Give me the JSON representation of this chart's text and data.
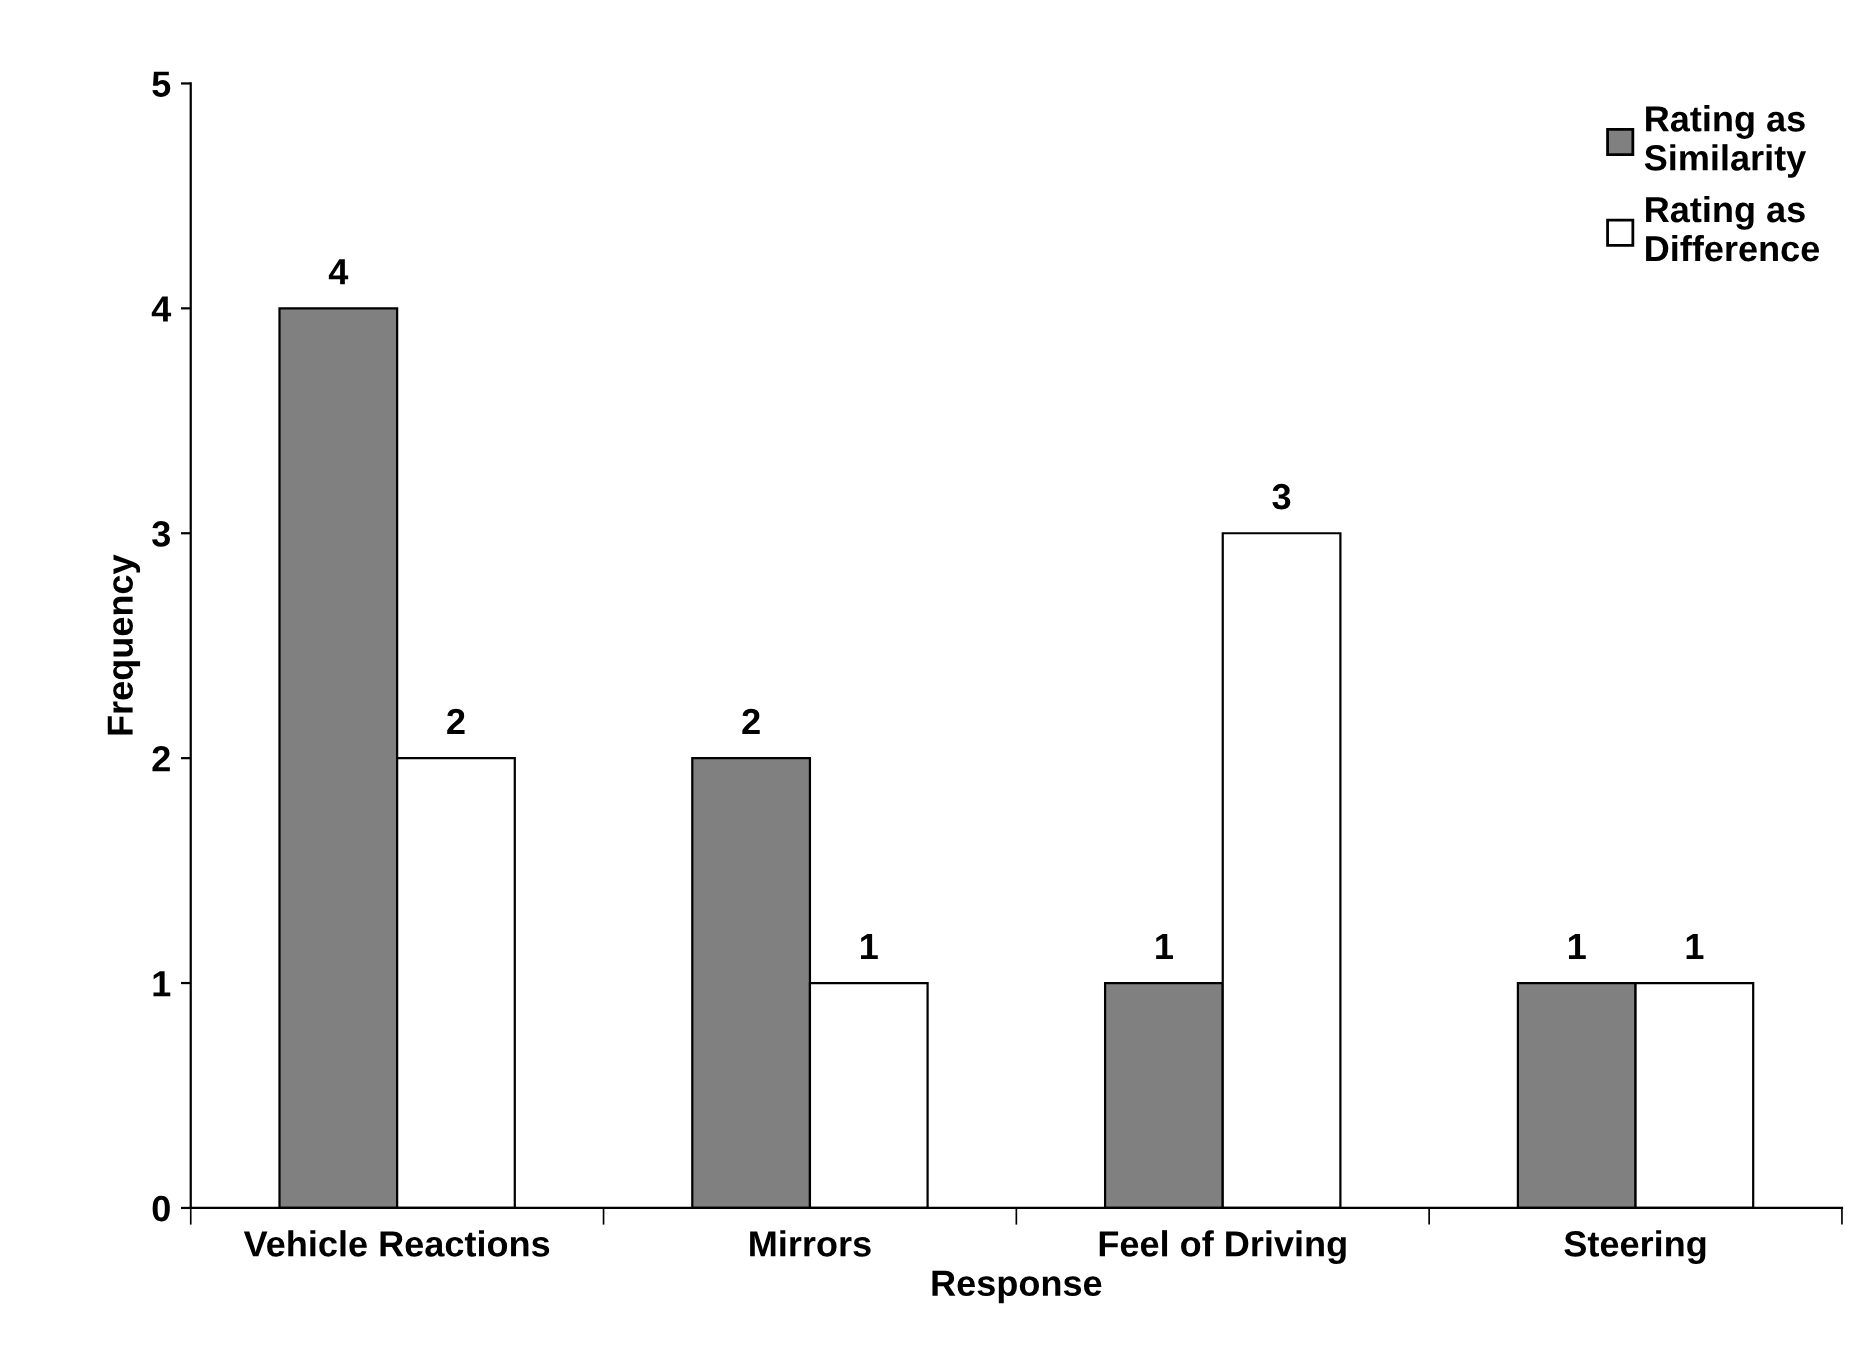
{
  "chart_data": {
    "type": "bar",
    "xlabel": "Response",
    "ylabel": "Frequency",
    "categories": [
      "Vehicle Reactions",
      "Mirrors",
      "Feel of Driving",
      "Steering"
    ],
    "series": [
      {
        "name": "Rating as\nSimilarity",
        "color": "#808080",
        "values": [
          4,
          2,
          1,
          1
        ]
      },
      {
        "name": "Rating as\nDifference",
        "color": "#ffffff",
        "values": [
          2,
          1,
          3,
          1
        ]
      }
    ],
    "ylim": [
      0,
      5
    ],
    "yticks": [
      0,
      1,
      2,
      3,
      4,
      5
    ],
    "grid": false,
    "legend": "top right",
    "data_labels": true
  }
}
